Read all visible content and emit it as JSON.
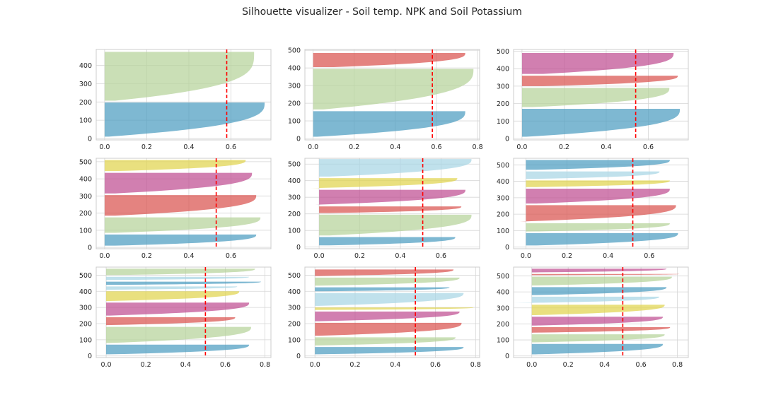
{
  "title": "Silhouette visualizer - Soil temp. NPK and Soil Potassium",
  "colors": {
    "blue": "#4c9cc1",
    "green": "#b5d39a",
    "red": "#d9534f",
    "purple": "#bf4d92",
    "yellow": "#e0d44e",
    "lightblue": "#a8d6e5",
    "mean_line": "#ff0000",
    "grid": "#d6d6d6",
    "spine": "#cccccc"
  },
  "chart_data": [
    {
      "type": "area",
      "title": "",
      "xlabel": "",
      "ylabel": "",
      "xlim": [
        -0.04,
        0.79
      ],
      "ylim": [
        -8,
        488
      ],
      "xticks": [
        "0.0",
        "0.2",
        "0.4",
        "0.6"
      ],
      "yticks": [
        "0",
        "100",
        "200",
        "300",
        "400"
      ],
      "xtick_values": [
        0,
        0.2,
        0.4,
        0.6
      ],
      "ytick_values": [
        0,
        100,
        200,
        300,
        400
      ],
      "grid": true,
      "mean_silhouette": 0.58,
      "clusters": [
        {
          "color": "blue",
          "lower": 10,
          "upper": 197,
          "max": 0.76,
          "min": 0.02,
          "curve": 3
        },
        {
          "color": "green",
          "lower": 207,
          "upper": 475,
          "max": 0.71,
          "min": 0.05,
          "curve": 3.5
        }
      ]
    },
    {
      "type": "area",
      "title": "",
      "xlabel": "",
      "ylabel": "",
      "xlim": [
        -0.04,
        0.81
      ],
      "ylim": [
        -8,
        505
      ],
      "xticks": [
        "0.0",
        "0.2",
        "0.4",
        "0.6",
        "0.8"
      ],
      "yticks": [
        "0",
        "100",
        "200",
        "300",
        "400",
        "500"
      ],
      "xtick_values": [
        0,
        0.2,
        0.4,
        0.6,
        0.8
      ],
      "ytick_values": [
        0,
        100,
        200,
        300,
        400,
        500
      ],
      "grid": true,
      "mean_silhouette": 0.58,
      "clusters": [
        {
          "color": "blue",
          "lower": 10,
          "upper": 155,
          "max": 0.74,
          "min": 0.02,
          "curve": 3
        },
        {
          "color": "green",
          "lower": 165,
          "upper": 395,
          "max": 0.78,
          "min": 0.05,
          "curve": 3
        },
        {
          "color": "red",
          "lower": 405,
          "upper": 485,
          "max": 0.74,
          "min": 0.1,
          "curve": 3
        }
      ]
    },
    {
      "type": "area",
      "title": "",
      "xlabel": "",
      "ylabel": "",
      "xlim": [
        -0.04,
        0.79
      ],
      "ylim": [
        -8,
        510
      ],
      "xticks": [
        "0.0",
        "0.2",
        "0.4",
        "0.6"
      ],
      "yticks": [
        "0",
        "100",
        "200",
        "300",
        "400",
        "500"
      ],
      "xtick_values": [
        0,
        0.2,
        0.4,
        0.6
      ],
      "ytick_values": [
        0,
        100,
        200,
        300,
        400,
        500
      ],
      "grid": true,
      "mean_silhouette": 0.54,
      "clusters": [
        {
          "color": "blue",
          "lower": 10,
          "upper": 170,
          "max": 0.75,
          "min": 0.02,
          "curve": 3
        },
        {
          "color": "green",
          "lower": 180,
          "upper": 290,
          "max": 0.7,
          "min": 0.05,
          "curve": 3
        },
        {
          "color": "red",
          "lower": 300,
          "upper": 360,
          "max": 0.74,
          "min": 0.1,
          "curve": 3
        },
        {
          "color": "purple",
          "lower": 370,
          "upper": 490,
          "max": 0.72,
          "min": 0.1,
          "curve": 3
        }
      ]
    },
    {
      "type": "area",
      "title": "",
      "xlabel": "",
      "ylabel": "",
      "xlim": [
        -0.04,
        0.79
      ],
      "ylim": [
        -8,
        520
      ],
      "xticks": [
        "0.0",
        "0.2",
        "0.4",
        "0.6"
      ],
      "yticks": [
        "0",
        "100",
        "200",
        "300",
        "400",
        "500"
      ],
      "xtick_values": [
        0,
        0.2,
        0.4,
        0.6
      ],
      "ytick_values": [
        0,
        100,
        200,
        300,
        400,
        500
      ],
      "grid": true,
      "mean_silhouette": 0.53,
      "clusters": [
        {
          "color": "blue",
          "lower": 10,
          "upper": 75,
          "max": 0.72,
          "min": 0.05,
          "curve": 3
        },
        {
          "color": "green",
          "lower": 85,
          "upper": 175,
          "max": 0.74,
          "min": 0.05,
          "curve": 3
        },
        {
          "color": "red",
          "lower": 185,
          "upper": 305,
          "max": 0.72,
          "min": 0.05,
          "curve": 3
        },
        {
          "color": "purple",
          "lower": 315,
          "upper": 435,
          "max": 0.7,
          "min": 0.05,
          "curve": 3
        },
        {
          "color": "yellow",
          "lower": 445,
          "upper": 510,
          "max": 0.67,
          "min": 0.05,
          "curve": 3
        }
      ]
    },
    {
      "type": "area",
      "title": "",
      "xlabel": "",
      "ylabel": "",
      "xlim": [
        -0.07,
        0.79
      ],
      "ylim": [
        -10,
        535
      ],
      "xticks": [
        "0.0",
        "0.2",
        "0.4",
        "0.6"
      ],
      "yticks": [
        "0",
        "100",
        "200",
        "300",
        "400",
        "500"
      ],
      "xtick_values": [
        0,
        0.2,
        0.4,
        0.6
      ],
      "ytick_values": [
        0,
        100,
        200,
        300,
        400,
        500
      ],
      "grid": true,
      "mean_silhouette": 0.51,
      "clusters": [
        {
          "color": "blue",
          "lower": 10,
          "upper": 60,
          "max": 0.67,
          "min": 0.05,
          "curve": 3
        },
        {
          "color": "green",
          "lower": 70,
          "upper": 195,
          "max": 0.75,
          "min": 0.05,
          "curve": 3
        },
        {
          "color": "red",
          "lower": 205,
          "upper": 245,
          "max": 0.7,
          "min": 0.05,
          "curve": 3
        },
        {
          "color": "purple",
          "lower": 255,
          "upper": 345,
          "max": 0.72,
          "min": -0.02,
          "curve": 3
        },
        {
          "color": "yellow",
          "lower": 355,
          "upper": 415,
          "max": 0.68,
          "min": -0.04,
          "curve": 3
        },
        {
          "color": "lightblue",
          "lower": 425,
          "upper": 530,
          "max": 0.75,
          "min": 0.05,
          "curve": 3
        }
      ]
    },
    {
      "type": "area",
      "title": "",
      "xlabel": "",
      "ylabel": "",
      "xlim": [
        -0.06,
        0.79
      ],
      "ylim": [
        -10,
        540
      ],
      "xticks": [
        "0.0",
        "0.2",
        "0.4",
        "0.6"
      ],
      "yticks": [
        "0",
        "100",
        "200",
        "300",
        "400",
        "500"
      ],
      "xtick_values": [
        0,
        0.2,
        0.4,
        0.6
      ],
      "ytick_values": [
        0,
        100,
        200,
        300,
        400,
        500
      ],
      "grid": true,
      "mean_silhouette": 0.52,
      "clusters": [
        {
          "color": "blue",
          "lower": 10,
          "upper": 85,
          "max": 0.74,
          "min": 0.05,
          "curve": 3
        },
        {
          "color": "green",
          "lower": 95,
          "upper": 145,
          "max": 0.7,
          "min": 0.05,
          "curve": 3
        },
        {
          "color": "red",
          "lower": 155,
          "upper": 255,
          "max": 0.73,
          "min": -0.03,
          "curve": 3
        },
        {
          "color": "purple",
          "lower": 265,
          "upper": 355,
          "max": 0.7,
          "min": 0.05,
          "curve": 3
        },
        {
          "color": "yellow",
          "lower": 365,
          "upper": 405,
          "max": 0.7,
          "min": 0.05,
          "curve": 3
        },
        {
          "color": "lightblue",
          "lower": 415,
          "upper": 460,
          "max": 0.65,
          "min": 0.05,
          "curve": 3
        },
        {
          "color": "blue",
          "lower": 470,
          "upper": 530,
          "max": 0.7,
          "min": 0.05,
          "curve": 3
        }
      ]
    },
    {
      "type": "area",
      "title": "",
      "xlabel": "",
      "ylabel": "",
      "xlim": [
        -0.05,
        0.83
      ],
      "ylim": [
        -10,
        550
      ],
      "xticks": [
        "0.0",
        "0.2",
        "0.4",
        "0.6",
        "0.8"
      ],
      "yticks": [
        "0",
        "100",
        "200",
        "300",
        "400",
        "500"
      ],
      "xtick_values": [
        0,
        0.2,
        0.4,
        0.6,
        0.8
      ],
      "ytick_values": [
        0,
        100,
        200,
        300,
        400,
        500
      ],
      "grid": true,
      "mean_silhouette": 0.5,
      "clusters": [
        {
          "color": "blue",
          "lower": 10,
          "upper": 70,
          "max": 0.72,
          "min": 0.02,
          "curve": 3
        },
        {
          "color": "green",
          "lower": 80,
          "upper": 180,
          "max": 0.73,
          "min": 0.02,
          "curve": 3
        },
        {
          "color": "red",
          "lower": 190,
          "upper": 240,
          "max": 0.65,
          "min": -0.02,
          "curve": 3
        },
        {
          "color": "purple",
          "lower": 250,
          "upper": 330,
          "max": 0.72,
          "min": 0.02,
          "curve": 3
        },
        {
          "color": "yellow",
          "lower": 340,
          "upper": 400,
          "max": 0.67,
          "min": 0.02,
          "curve": 3
        },
        {
          "color": "lightblue",
          "lower": 410,
          "upper": 430,
          "max": 0.66,
          "min": 0.02,
          "curve": 3
        },
        {
          "color": "blue",
          "lower": 440,
          "upper": 460,
          "max": 0.78,
          "min": 0.02,
          "curve": 3
        },
        {
          "color": "lightblue",
          "lower": 470,
          "upper": 490,
          "max": 0.72,
          "min": 0.02,
          "curve": 3
        },
        {
          "color": "green",
          "lower": 500,
          "upper": 540,
          "max": 0.75,
          "min": 0.02,
          "curve": 3
        }
      ]
    },
    {
      "type": "area",
      "title": "",
      "xlabel": "",
      "ylabel": "",
      "xlim": [
        -0.05,
        0.82
      ],
      "ylim": [
        -10,
        550
      ],
      "xticks": [
        "0.0",
        "0.2",
        "0.4",
        "0.6",
        "0.8"
      ],
      "yticks": [
        "0",
        "100",
        "200",
        "300",
        "400",
        "500"
      ],
      "xtick_values": [
        0,
        0.2,
        0.4,
        0.6,
        0.8
      ],
      "ytick_values": [
        0,
        100,
        200,
        300,
        400,
        500
      ],
      "grid": true,
      "mean_silhouette": 0.5,
      "clusters": [
        {
          "color": "blue",
          "lower": 10,
          "upper": 55,
          "max": 0.74,
          "min": 0.02,
          "curve": 3
        },
        {
          "color": "green",
          "lower": 65,
          "upper": 115,
          "max": 0.7,
          "min": 0.02,
          "curve": 3
        },
        {
          "color": "red",
          "lower": 125,
          "upper": 205,
          "max": 0.73,
          "min": 0.02,
          "curve": 3
        },
        {
          "color": "purple",
          "lower": 215,
          "upper": 275,
          "max": 0.72,
          "min": 0.02,
          "curve": 3
        },
        {
          "color": "yellow",
          "lower": 285,
          "upper": 300,
          "max": 0.79,
          "min": 0.02,
          "curve": 3
        },
        {
          "color": "lightblue",
          "lower": 310,
          "upper": 390,
          "max": 0.74,
          "min": 0.02,
          "curve": 3
        },
        {
          "color": "blue",
          "lower": 400,
          "upper": 425,
          "max": 0.67,
          "min": 0.02,
          "curve": 3
        },
        {
          "color": "green",
          "lower": 435,
          "upper": 485,
          "max": 0.72,
          "min": 0.02,
          "curve": 3
        },
        {
          "color": "red",
          "lower": 495,
          "upper": 535,
          "max": 0.69,
          "min": 0.02,
          "curve": 3
        }
      ]
    },
    {
      "type": "area",
      "title": "",
      "xlabel": "",
      "ylabel": "",
      "xlim": [
        -0.1,
        0.86
      ],
      "ylim": [
        -10,
        555
      ],
      "xticks": [
        "0.0",
        "0.2",
        "0.4",
        "0.6",
        "0.8"
      ],
      "yticks": [
        "0",
        "100",
        "200",
        "300",
        "400",
        "500"
      ],
      "xtick_values": [
        0,
        0.2,
        0.4,
        0.6,
        0.8
      ],
      "ytick_values": [
        0,
        100,
        200,
        300,
        400,
        500
      ],
      "grid": true,
      "mean_silhouette": 0.5,
      "clusters": [
        {
          "color": "blue",
          "lower": 10,
          "upper": 75,
          "max": 0.72,
          "min": 0.02,
          "curve": 3
        },
        {
          "color": "green",
          "lower": 85,
          "upper": 135,
          "max": 0.73,
          "min": 0.02,
          "curve": 3
        },
        {
          "color": "red",
          "lower": 145,
          "upper": 180,
          "max": 0.76,
          "min": -0.03,
          "curve": 3
        },
        {
          "color": "purple",
          "lower": 190,
          "upper": 245,
          "max": 0.72,
          "min": 0.02,
          "curve": 3
        },
        {
          "color": "yellow",
          "lower": 255,
          "upper": 320,
          "max": 0.73,
          "min": 0.02,
          "curve": 3
        },
        {
          "color": "lightblue",
          "lower": 330,
          "upper": 370,
          "max": 0.7,
          "min": -0.1,
          "curve": 3
        },
        {
          "color": "blue",
          "lower": 380,
          "upper": 430,
          "max": 0.74,
          "min": 0.02,
          "curve": 3
        },
        {
          "color": "green",
          "lower": 440,
          "upper": 495,
          "max": 0.77,
          "min": 0.02,
          "curve": 3
        },
        {
          "color": "red",
          "lower": 505,
          "upper": 512,
          "max": 0.81,
          "min": 0.1,
          "curve": 3
        },
        {
          "color": "purple",
          "lower": 522,
          "upper": 545,
          "max": 0.74,
          "min": 0.02,
          "curve": 3
        }
      ]
    }
  ]
}
